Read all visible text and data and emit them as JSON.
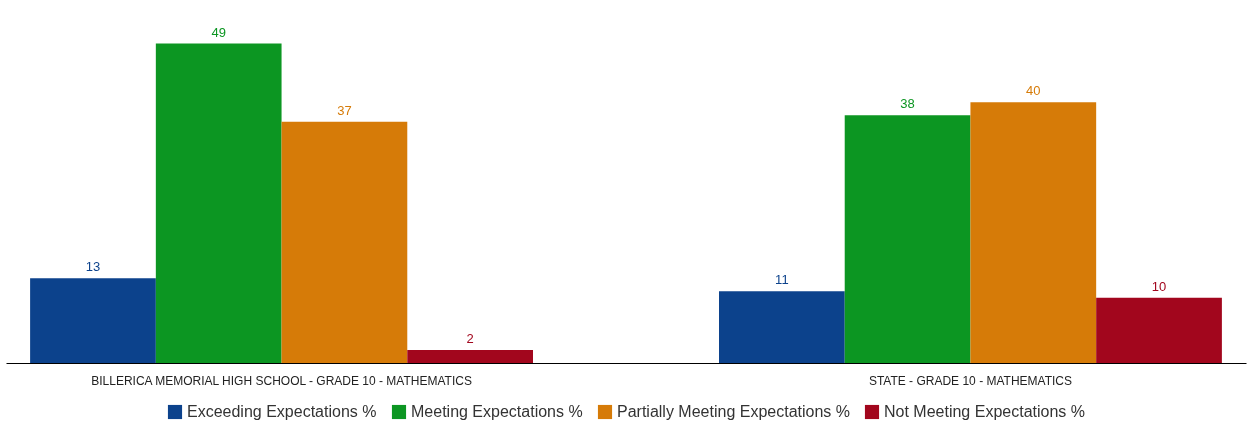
{
  "chart_data": {
    "type": "bar",
    "categories": [
      "BILLERICA MEMORIAL HIGH SCHOOL - GRADE 10 - MATHEMATICS",
      "STATE - GRADE 10 - MATHEMATICS"
    ],
    "series": [
      {
        "name": "Exceeding Expectations %",
        "color": "#0c428c",
        "values": [
          13,
          11
        ]
      },
      {
        "name": "Meeting Expectations %",
        "color": "#0c9622",
        "values": [
          49,
          38
        ]
      },
      {
        "name": "Partially Meeting Expectations %",
        "color": "#d67b08",
        "values": [
          37,
          40
        ]
      },
      {
        "name": "Not Meeting Expectations %",
        "color": "#a2061d",
        "values": [
          2,
          10
        ]
      }
    ],
    "data_labels": true,
    "legend": "bottom",
    "tick_labels": "x"
  }
}
